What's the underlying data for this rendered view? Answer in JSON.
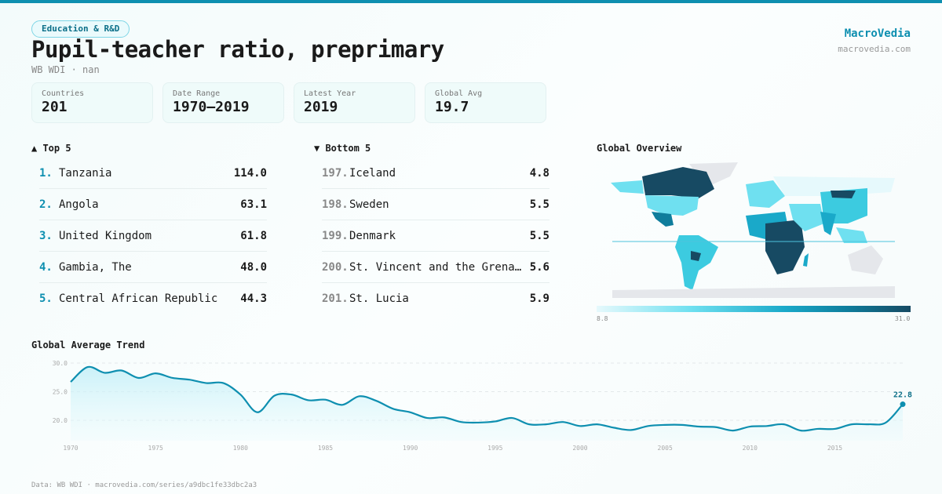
{
  "header": {
    "tag": "Education & R&D",
    "title": "Pupil-teacher ratio, preprimary",
    "subtitle": "WB WDI · nan",
    "brand": "MacroVedia",
    "brand_url": "macrovedia.com"
  },
  "stats": [
    {
      "label": "Countries",
      "value": "201"
    },
    {
      "label": "Date Range",
      "value": "1970–2019"
    },
    {
      "label": "Latest Year",
      "value": "2019"
    },
    {
      "label": "Global Avg",
      "value": "19.7"
    }
  ],
  "top5": {
    "title": "▲ Top 5",
    "items": [
      {
        "rank": "1.",
        "name": "Tanzania",
        "value": "114.0"
      },
      {
        "rank": "2.",
        "name": "Angola",
        "value": "63.1"
      },
      {
        "rank": "3.",
        "name": "United Kingdom",
        "value": "61.8"
      },
      {
        "rank": "4.",
        "name": "Gambia, The",
        "value": "48.0"
      },
      {
        "rank": "5.",
        "name": "Central African Republic",
        "value": "44.3"
      }
    ]
  },
  "bottom5": {
    "title": "▼ Bottom 5",
    "items": [
      {
        "rank": "197.",
        "name": "Iceland",
        "value": "4.8"
      },
      {
        "rank": "198.",
        "name": "Sweden",
        "value": "5.5"
      },
      {
        "rank": "199.",
        "name": "Denmark",
        "value": "5.5"
      },
      {
        "rank": "200.",
        "name": "St. Vincent and the Grenadines",
        "value": "5.6"
      },
      {
        "rank": "201.",
        "name": "St. Lucia",
        "value": "5.9"
      }
    ]
  },
  "map": {
    "title": "Global Overview",
    "legend_min": "8.8",
    "legend_max": "31.0",
    "colors": {
      "low": "#e6f9fc",
      "mid": "#1aa9c9",
      "high": "#174a63",
      "nodata": "#e5e7eb"
    }
  },
  "chart_data": {
    "type": "area",
    "title": "Global Average Trend",
    "x": [
      1970,
      1971,
      1972,
      1973,
      1974,
      1975,
      1976,
      1977,
      1978,
      1979,
      1980,
      1981,
      1982,
      1983,
      1984,
      1985,
      1986,
      1987,
      1988,
      1989,
      1990,
      1991,
      1992,
      1993,
      1994,
      1995,
      1996,
      1997,
      1998,
      1999,
      2000,
      2001,
      2002,
      2003,
      2004,
      2005,
      2006,
      2007,
      2008,
      2009,
      2010,
      2011,
      2012,
      2013,
      2014,
      2015,
      2016,
      2017,
      2018,
      2019
    ],
    "y": [
      26.7,
      29.3,
      28.3,
      28.7,
      27.4,
      28.2,
      27.4,
      27.1,
      26.5,
      26.5,
      24.5,
      21.4,
      24.3,
      24.5,
      23.5,
      23.6,
      22.7,
      24.2,
      23.4,
      22.0,
      21.4,
      20.4,
      20.5,
      19.7,
      19.6,
      19.8,
      20.4,
      19.3,
      19.3,
      19.7,
      19.0,
      19.3,
      18.7,
      18.3,
      19.0,
      19.2,
      19.2,
      18.9,
      18.8,
      18.2,
      18.9,
      19.0,
      19.3,
      18.2,
      18.5,
      18.5,
      19.3,
      19.3,
      19.6,
      22.8
    ],
    "yticks": [
      "20.0",
      "25.0",
      "30.0"
    ],
    "xticks": [
      "1970",
      "1975",
      "1980",
      "1985",
      "1990",
      "1995",
      "2000",
      "2005",
      "2010",
      "2015"
    ],
    "last_label": "22.8",
    "color": "#0e8fb0"
  },
  "footer": "Data: WB WDI · macrovedia.com/series/a9dbc1fe33dbc2a3"
}
